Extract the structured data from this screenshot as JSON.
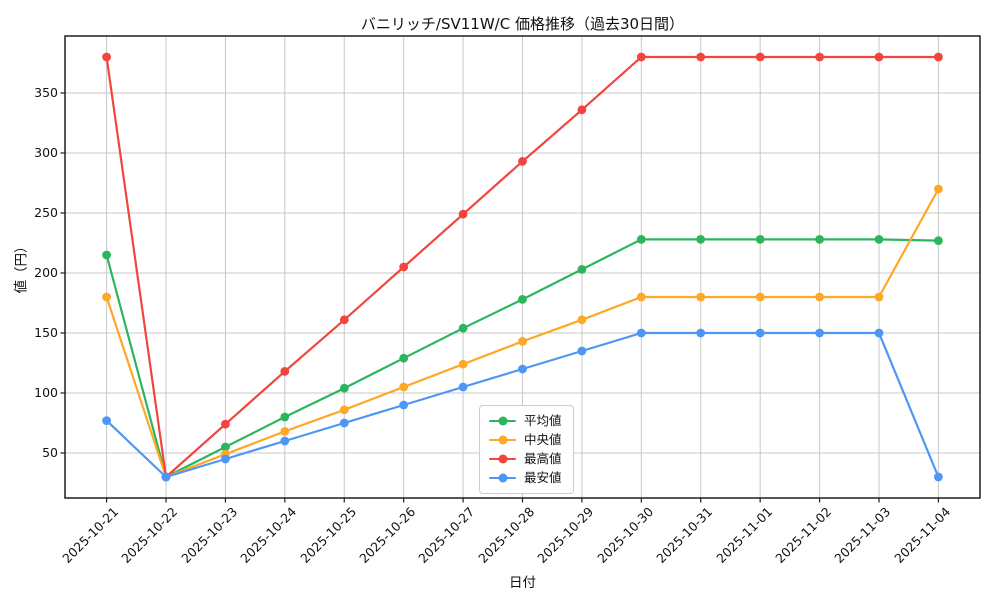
{
  "chart_data": {
    "type": "line",
    "title": "バニリッチ/SV11W/C 価格推移（過去30日間）",
    "xlabel": "日付",
    "ylabel": "値（円）",
    "categories": [
      "2025-10-21",
      "2025-10-22",
      "2025-10-23",
      "2025-10-24",
      "2025-10-25",
      "2025-10-26",
      "2025-10-27",
      "2025-10-28",
      "2025-10-29",
      "2025-10-30",
      "2025-10-31",
      "2025-11-01",
      "2025-11-02",
      "2025-11-03",
      "2025-11-04"
    ],
    "series": [
      {
        "name": "平均値",
        "key": "mean",
        "color": "#2db55d",
        "values": [
          215,
          30,
          55,
          80,
          104,
          129,
          154,
          178,
          203,
          228,
          228,
          228,
          228,
          228,
          227
        ]
      },
      {
        "name": "中央値",
        "key": "median",
        "color": "#ffa726",
        "values": [
          180,
          30,
          49,
          68,
          86,
          105,
          124,
          143,
          161,
          180,
          180,
          180,
          180,
          180,
          270
        ]
      },
      {
        "name": "最高値",
        "key": "max",
        "color": "#f1453d",
        "values": [
          380,
          30,
          74,
          118,
          161,
          205,
          249,
          293,
          336,
          380,
          380,
          380,
          380,
          380,
          380
        ]
      },
      {
        "name": "最安値",
        "key": "min",
        "color": "#4d96f5",
        "values": [
          77,
          30,
          45,
          60,
          75,
          90,
          105,
          120,
          135,
          150,
          150,
          150,
          150,
          150,
          30
        ]
      }
    ],
    "ylim": [
      12.5,
      397.5
    ],
    "yticks": [
      50,
      100,
      150,
      200,
      250,
      300,
      350
    ],
    "grid": true,
    "legend_position": "lower-center-left"
  },
  "colors": {
    "grid": "#c8c8c8",
    "axis": "#1f1f1f",
    "background": "#ffffff"
  }
}
